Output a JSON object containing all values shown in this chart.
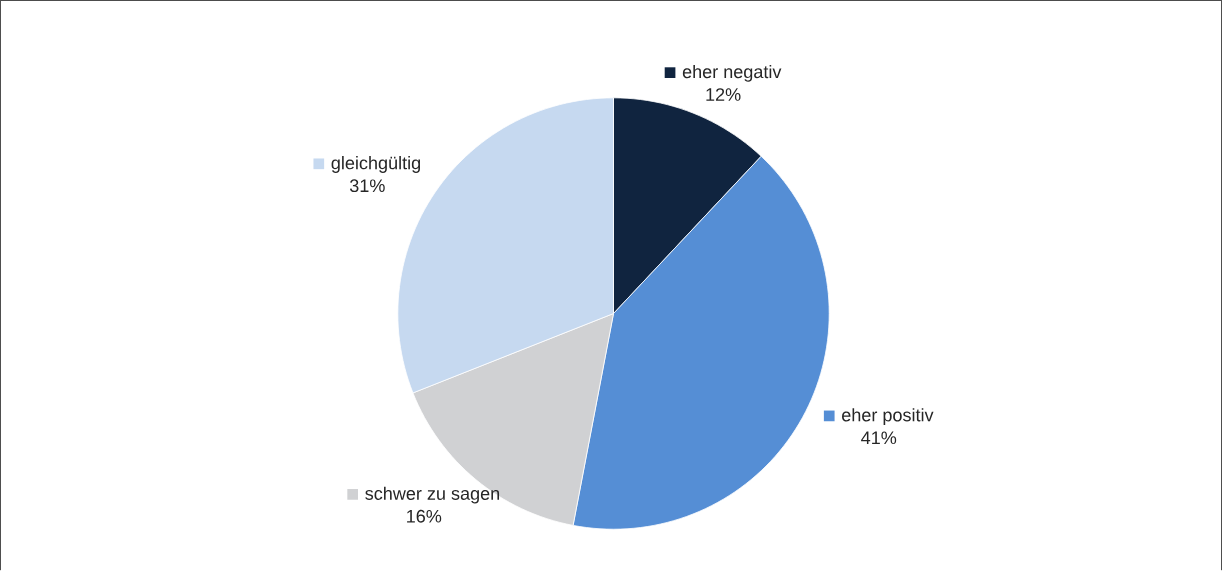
{
  "chart_data": {
    "type": "pie",
    "categories": [
      "eher negativ",
      "eher positiv",
      "schwer zu sagen",
      "gleichgültig"
    ],
    "values": [
      12,
      41,
      16,
      31
    ],
    "value_labels": [
      "12%",
      "41%",
      "16%",
      "31%"
    ],
    "legend": "right",
    "colors": [
      "#10243f",
      "#558ed5",
      "#d0d1d3",
      "#c6d9f0"
    ]
  }
}
